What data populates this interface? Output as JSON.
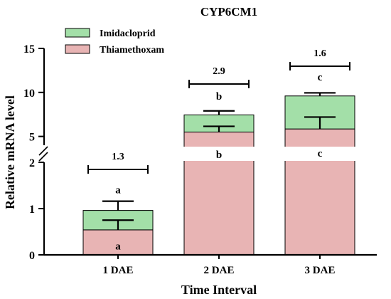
{
  "chart_data": {
    "type": "bar",
    "stacked": true,
    "title": "CYP6CM1",
    "xlabel": "Time Interval",
    "ylabel": "Relative mRNA level",
    "categories": [
      "1 DAE",
      "2 DAE",
      "3 DAE"
    ],
    "axis_break": true,
    "lower_segment_range": [
      0,
      2
    ],
    "upper_segment_range": [
      4,
      15
    ],
    "lower_ticks": [
      "0",
      "1",
      "2"
    ],
    "upper_ticks": [
      "5",
      "10",
      "15"
    ],
    "series": [
      {
        "name": "Thiamethoxam",
        "color": "#e8b4b4",
        "values": [
          0.54,
          5.5,
          5.85
        ],
        "error_top": [
          0.75,
          6.15,
          7.2
        ],
        "letters": [
          "a",
          "b",
          "c"
        ]
      },
      {
        "name": "Imidacloprid",
        "color": "#a3dfa8",
        "values": [
          0.42,
          1.95,
          3.75
        ],
        "error_top": [
          1.16,
          7.9,
          9.95
        ],
        "letters": [
          "a",
          "b",
          "c"
        ]
      }
    ],
    "fold_change_labels": [
      "1.3",
      "2.9",
      "1.6"
    ],
    "legend_position": "top-left"
  }
}
